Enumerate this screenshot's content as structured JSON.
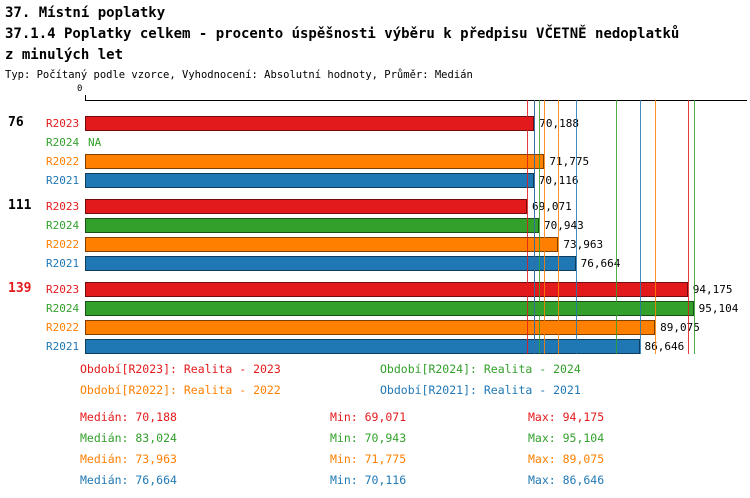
{
  "header": {
    "title": "37. Místní poplatky",
    "subtitle_line1": "37.1.4 Poplatky celkem - procento úspěšnosti výběru k předpisu VČETNĚ nedoplatků",
    "subtitle_line2": "z minulých let",
    "meta": "Typ: Počítaný podle vzorce, Vyhodnocení: Absolutní hodnoty, Průměr: Medián"
  },
  "colors": {
    "r2023": "#e31a1c",
    "r2024": "#33a02c",
    "r2022": "#ff7f00",
    "r2021": "#1f78b4"
  },
  "axis": {
    "origin_label": "0"
  },
  "chart_data": {
    "type": "bar",
    "orientation": "horizontal",
    "title": "37.1.4 Poplatky celkem - procento úspěšnosti výběru k předpisu VČETNĚ nedoplatků z minulých let",
    "xlim": [
      0,
      100
    ],
    "categories": [
      "76",
      "111",
      "139"
    ],
    "series": [
      {
        "name": "R2023",
        "color_key": "r2023",
        "values": [
          70.188,
          69.071,
          94.175
        ]
      },
      {
        "name": "R2024",
        "color_key": "r2024",
        "values": [
          null,
          70.943,
          95.104
        ]
      },
      {
        "name": "R2022",
        "color_key": "r2022",
        "values": [
          71.775,
          73.963,
          89.075
        ]
      },
      {
        "name": "R2021",
        "color_key": "r2021",
        "values": [
          70.116,
          76.664,
          86.646
        ]
      }
    ],
    "rows": [
      {
        "group": "76",
        "series": "R2023",
        "key": "r2023",
        "value": "70,188"
      },
      {
        "series": "R2024",
        "key": "r2024",
        "value": "NA",
        "na": true
      },
      {
        "series": "R2022",
        "key": "r2022",
        "value": "71,775"
      },
      {
        "series": "R2021",
        "key": "r2021",
        "value": "70,116"
      },
      {
        "group": "111",
        "series": "R2023",
        "key": "r2023",
        "value": "69,071"
      },
      {
        "series": "R2024",
        "key": "r2024",
        "value": "70,943"
      },
      {
        "series": "R2022",
        "key": "r2022",
        "value": "73,963"
      },
      {
        "series": "R2021",
        "key": "r2021",
        "value": "76,664"
      },
      {
        "group": "139",
        "group_color": "#e31a1c",
        "series": "R2023",
        "key": "r2023",
        "value": "94,175"
      },
      {
        "series": "R2024",
        "key": "r2024",
        "value": "95,104"
      },
      {
        "series": "R2022",
        "key": "r2022",
        "value": "89,075"
      },
      {
        "series": "R2021",
        "key": "r2021",
        "value": "86,646"
      }
    ]
  },
  "legend": {
    "items": [
      {
        "key": "r2023",
        "text": "Období[R2023]: Realita - 2023",
        "col": 0,
        "row": 0
      },
      {
        "key": "r2024",
        "text": "Období[R2024]: Realita - 2024",
        "col": 1,
        "row": 0
      },
      {
        "key": "r2022",
        "text": "Období[R2022]: Realita - 2022",
        "col": 0,
        "row": 1
      },
      {
        "key": "r2021",
        "text": "Období[R2021]: Realita - 2021",
        "col": 1,
        "row": 1
      }
    ]
  },
  "stats": {
    "labels": {
      "median": "Medián",
      "min": "Min",
      "max": "Max"
    },
    "rows": [
      {
        "key": "r2023",
        "series": "R2023",
        "median": "70,188",
        "min": "69,071",
        "max": "94,175"
      },
      {
        "key": "r2024",
        "series": "R2024",
        "median": "83,024",
        "min": "70,943",
        "max": "95,104"
      },
      {
        "key": "r2022",
        "series": "R2022",
        "median": "73,963",
        "min": "71,775",
        "max": "89,075"
      },
      {
        "key": "r2021",
        "series": "R2021",
        "median": "76,664",
        "min": "70,116",
        "max": "86,646"
      }
    ]
  }
}
